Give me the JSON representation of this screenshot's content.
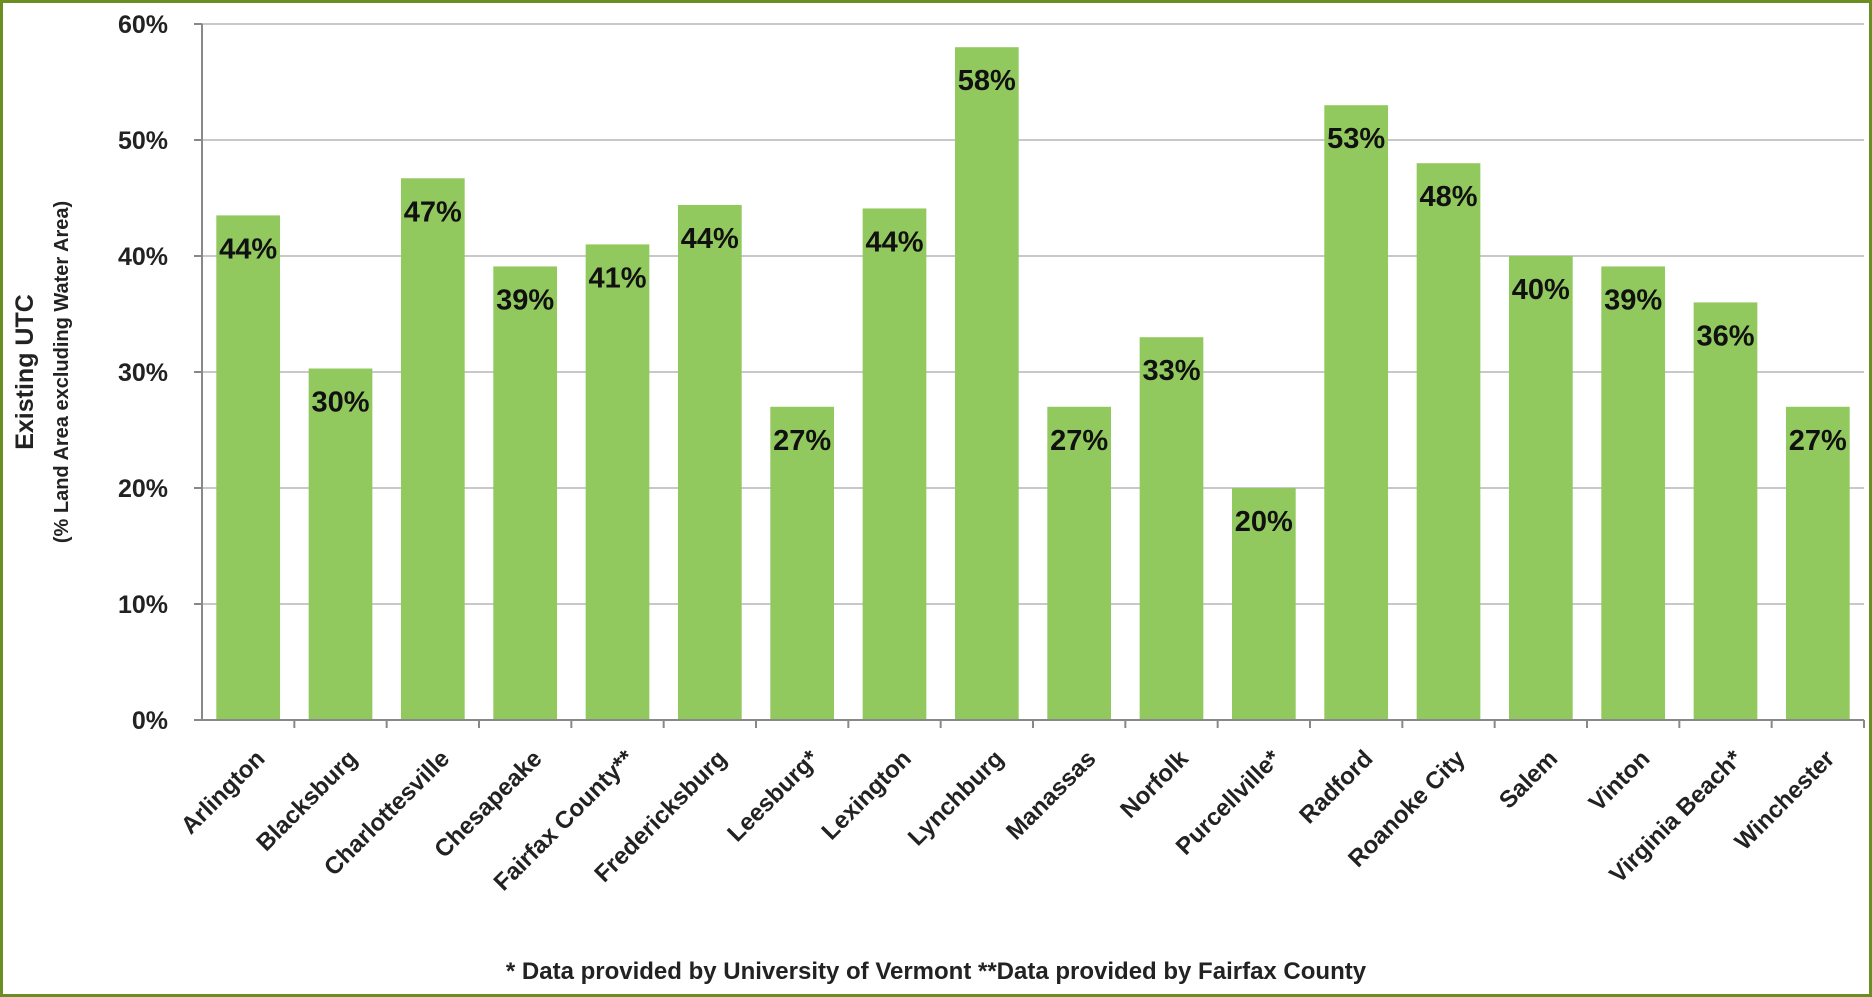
{
  "chart_data": {
    "type": "bar",
    "ylabel": "Existing UTC",
    "ylabel_sub": "(% Land Area excluding Water Area)",
    "ylim": [
      0,
      60
    ],
    "yticks": [
      "0%",
      "10%",
      "20%",
      "30%",
      "40%",
      "50%",
      "60%"
    ],
    "ytick_values": [
      0,
      10,
      20,
      30,
      40,
      50,
      60
    ],
    "grid": true,
    "bar_color": "#92c95f",
    "categories": [
      "Arlington",
      "Blacksburg",
      "Charlottesville",
      "Chesapeake",
      "Fairfax County**",
      "Fredericksburg",
      "Leesburg*",
      "Lexington",
      "Lynchburg",
      "Manassas",
      "Norfolk",
      "Purcellville*",
      "Radford",
      "Roanoke City",
      "Salem",
      "Vinton",
      "Virginia Beach*",
      "Winchester"
    ],
    "values": [
      43.5,
      30.3,
      46.7,
      39.1,
      41.0,
      44.4,
      27.0,
      44.1,
      58.0,
      27.0,
      33.0,
      20.0,
      53.0,
      48.0,
      40.0,
      39.1,
      36.0,
      27.0
    ],
    "data_labels": [
      "44%",
      "30%",
      "47%",
      "39%",
      "41%",
      "44%",
      "27%",
      "44%",
      "58%",
      "27%",
      "33%",
      "20%",
      "53%",
      "48%",
      "40%",
      "39%",
      "36%",
      "27%"
    ]
  },
  "footnote": "* Data provided by University of Vermont    **Data provided by Fairfax County"
}
